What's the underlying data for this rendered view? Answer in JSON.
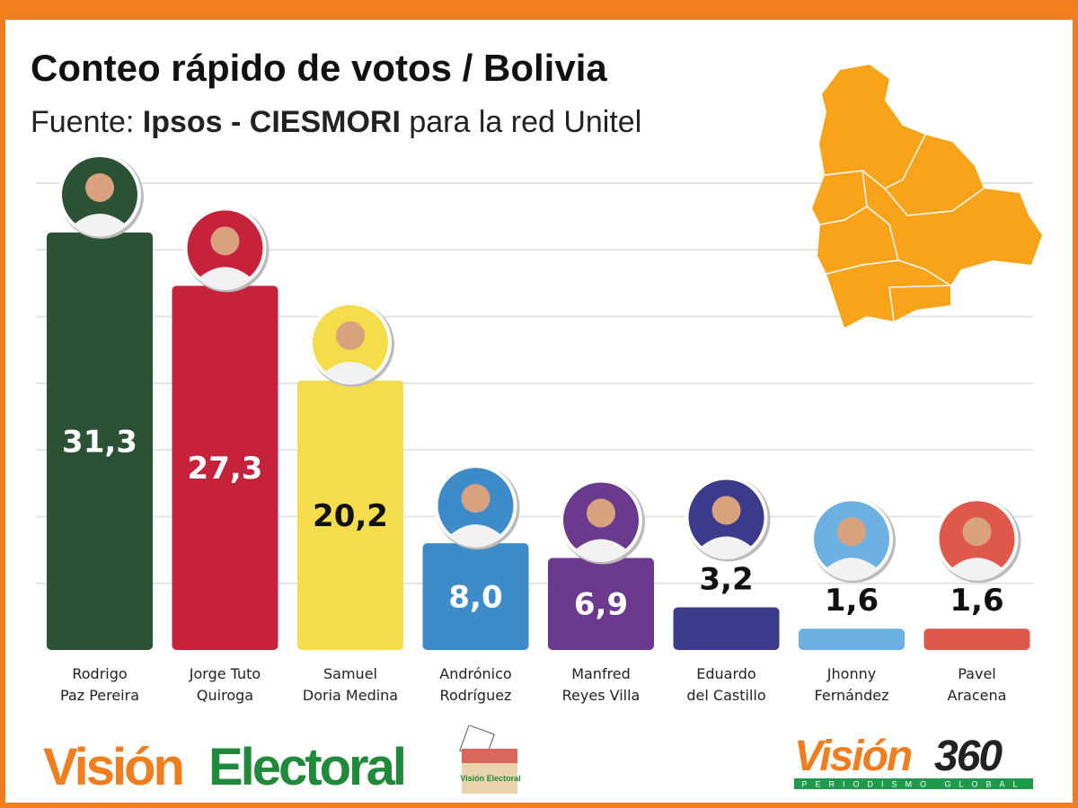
{
  "title": "Conteo rápido de votos / Bolivia",
  "subtitle": {
    "prefix": "Fuente: ",
    "source": "Ipsos - CIESMORI",
    "suffix": " para la red Unitel"
  },
  "chart_data": {
    "type": "bar",
    "title": "Conteo rápido de votos / Bolivia",
    "xlabel": "",
    "ylabel": "",
    "ylim": [
      0,
      35
    ],
    "grid": true,
    "categories": [
      "Rodrigo\nPaz Pereira",
      "Jorge Tuto\nQuiroga",
      "Samuel\nDoria Medina",
      "Andrónico\nRodríguez",
      "Manfred\nReyes Villa",
      "Eduardo\ndel Castillo",
      "Jhonny\nFernández",
      "Pavel\nAracena"
    ],
    "values": [
      31.3,
      27.3,
      20.2,
      8.0,
      6.9,
      3.2,
      1.6,
      1.6
    ],
    "value_labels": [
      "31,3",
      "27,3",
      "20,2",
      "8,0",
      "6,9",
      "3,2",
      "1,6",
      "1,6"
    ],
    "colors": [
      "#2b5234",
      "#c7223b",
      "#f4dc4a",
      "#3d8bc8",
      "#6b3a8f",
      "#3b3a8c",
      "#6cb0e4",
      "#e0574b"
    ]
  },
  "logos": {
    "left": {
      "word1": "Visión",
      "word2": "Electoral",
      "box_text": "Visión Electoral"
    },
    "right": {
      "word1": "Visión",
      "word2": "360",
      "tagline": "PERIODISMO GLOBAL"
    }
  },
  "colors": {
    "frame": "#f07d1e",
    "map": "#f9a31b"
  }
}
